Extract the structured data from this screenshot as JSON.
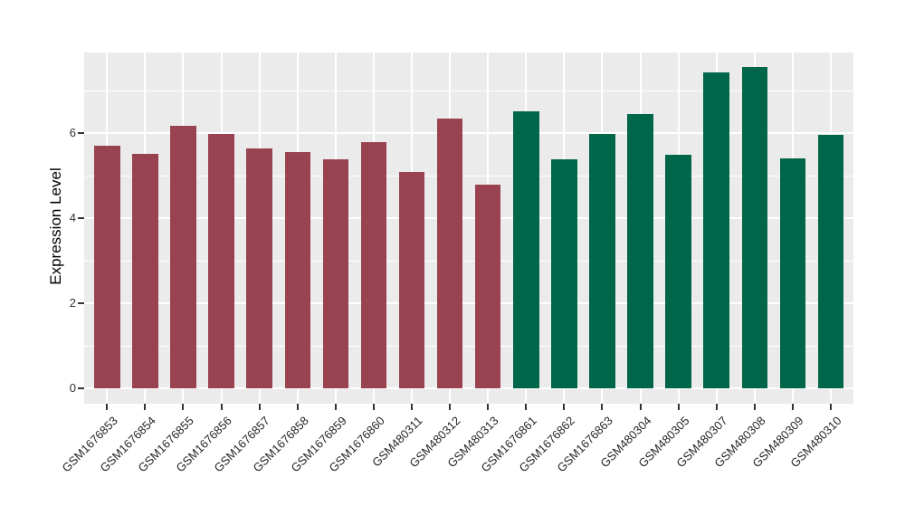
{
  "chart_data": {
    "type": "bar",
    "title": "",
    "xlabel": "",
    "ylabel": "Expression Level",
    "ylim": [
      0,
      7.93
    ],
    "yticks": [
      0,
      2,
      4,
      6
    ],
    "yticks_minor": [
      1,
      3,
      5,
      7
    ],
    "grid": true,
    "legend_position": "none",
    "panel_bg": "#EBEBEB",
    "grid_color": "#FFFFFF",
    "tick_color": "#333333",
    "groups": [
      {
        "name": "group-1",
        "color": "#9A4350"
      },
      {
        "name": "group-2",
        "color": "#006649"
      }
    ],
    "bars": [
      {
        "label": "GSM1676853",
        "value": 5.7,
        "group": "group-1"
      },
      {
        "label": "GSM1676854",
        "value": 5.52,
        "group": "group-1"
      },
      {
        "label": "GSM1676855",
        "value": 6.17,
        "group": "group-1"
      },
      {
        "label": "GSM1676856",
        "value": 5.98,
        "group": "group-1"
      },
      {
        "label": "GSM1676857",
        "value": 5.63,
        "group": "group-1"
      },
      {
        "label": "GSM1676858",
        "value": 5.55,
        "group": "group-1"
      },
      {
        "label": "GSM1676859",
        "value": 5.38,
        "group": "group-1"
      },
      {
        "label": "GSM1676860",
        "value": 5.79,
        "group": "group-1"
      },
      {
        "label": "GSM480311",
        "value": 5.09,
        "group": "group-1"
      },
      {
        "label": "GSM480312",
        "value": 6.34,
        "group": "group-1"
      },
      {
        "label": "GSM480313",
        "value": 4.78,
        "group": "group-1"
      },
      {
        "label": "GSM1676861",
        "value": 6.51,
        "group": "group-2"
      },
      {
        "label": "GSM1676862",
        "value": 5.38,
        "group": "group-2"
      },
      {
        "label": "GSM1676863",
        "value": 5.97,
        "group": "group-2"
      },
      {
        "label": "GSM480304",
        "value": 6.45,
        "group": "group-2"
      },
      {
        "label": "GSM480305",
        "value": 5.5,
        "group": "group-2"
      },
      {
        "label": "GSM480307",
        "value": 7.43,
        "group": "group-2"
      },
      {
        "label": "GSM480308",
        "value": 7.55,
        "group": "group-2"
      },
      {
        "label": "GSM480309",
        "value": 5.4,
        "group": "group-2"
      },
      {
        "label": "GSM480310",
        "value": 5.95,
        "group": "group-2"
      }
    ]
  }
}
